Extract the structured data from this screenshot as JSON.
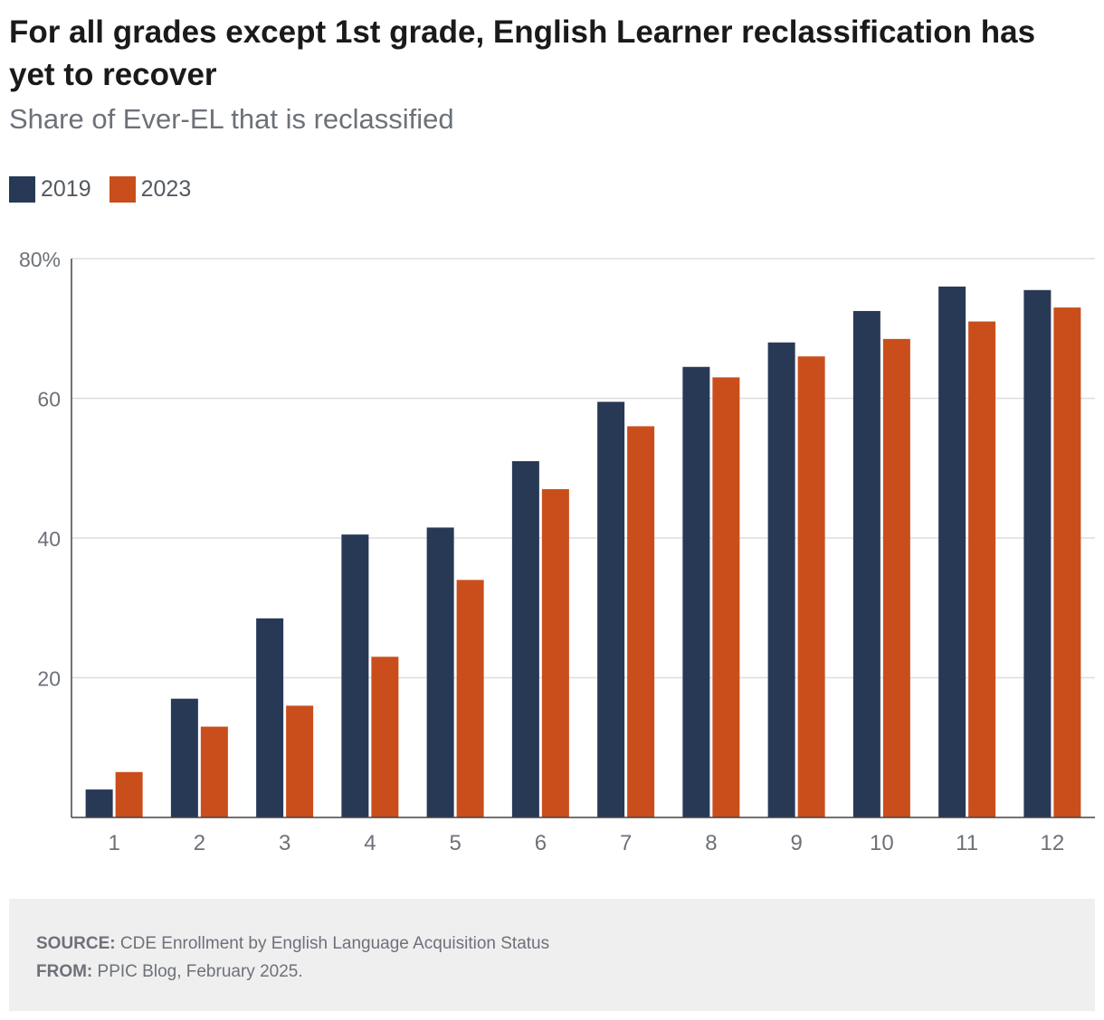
{
  "header": {
    "title": "For all grades except 1st grade, English Learner reclassification has yet to recover",
    "subtitle": "Share of Ever-EL that is reclassified"
  },
  "legend": [
    {
      "label": "2019",
      "color": "#283956"
    },
    {
      "label": "2023",
      "color": "#c94e1c"
    }
  ],
  "chart_data": {
    "type": "bar",
    "title": "For all grades except 1st grade, English Learner reclassification has yet to recover",
    "subtitle": "Share of Ever-EL that is reclassified",
    "xlabel": "",
    "ylabel": "",
    "categories": [
      "1",
      "2",
      "3",
      "4",
      "5",
      "6",
      "7",
      "8",
      "9",
      "10",
      "11",
      "12"
    ],
    "series": [
      {
        "name": "2019",
        "color": "#283956",
        "values": [
          4,
          17,
          28.5,
          40.5,
          41.5,
          51,
          59.5,
          64.5,
          68,
          72.5,
          76,
          75.5
        ]
      },
      {
        "name": "2023",
        "color": "#c94e1c",
        "values": [
          6.5,
          13,
          16,
          23,
          34,
          47,
          56,
          63,
          66,
          68.5,
          71,
          73
        ]
      }
    ],
    "ylim": [
      0,
      80
    ],
    "yticks": [
      20,
      40,
      60,
      80
    ],
    "ytick_labels": [
      "20",
      "40",
      "60",
      "80%"
    ],
    "grid": true,
    "legend_position": "top-left"
  },
  "footer": {
    "source_label": "SOURCE:",
    "source_text": "CDE Enrollment by English Language Acquisition Status",
    "from_label": "FROM:",
    "from_text": "PPIC Blog, February 2025."
  }
}
